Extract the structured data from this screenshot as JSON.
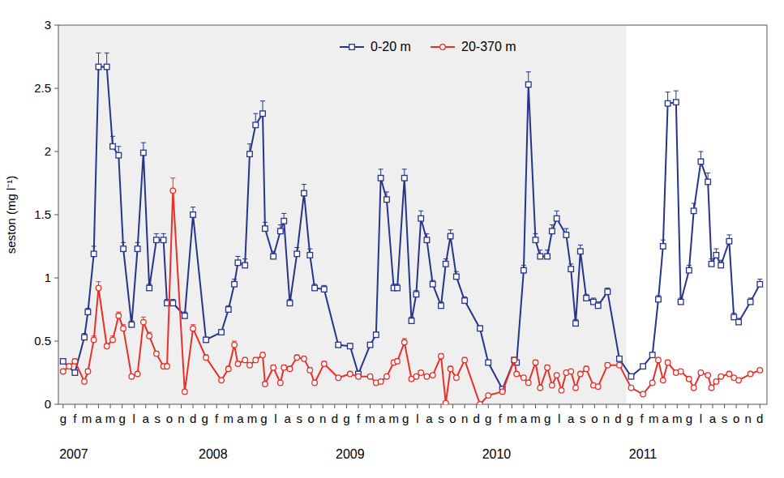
{
  "chart_data": {
    "type": "line",
    "y_label": "seston (mg l⁻¹)",
    "legend": "upper center",
    "marker": "square",
    "line_style": "solid",
    "xlim": [
      -0.4,
      59.6
    ],
    "ylim": [
      0,
      3
    ],
    "yticks": [
      0,
      0.5,
      1,
      1.5,
      2,
      2.5,
      3
    ],
    "shaded_range": [
      -0.4,
      47.7
    ],
    "xticks": [
      {
        "value": 0,
        "label": "g"
      },
      {
        "value": 1,
        "label": "f"
      },
      {
        "value": 2,
        "label": "m"
      },
      {
        "value": 3,
        "label": "a"
      },
      {
        "value": 4,
        "label": "m"
      },
      {
        "value": 5,
        "label": "g"
      },
      {
        "value": 6,
        "label": "l"
      },
      {
        "value": 7,
        "label": "a"
      },
      {
        "value": 8,
        "label": "s"
      },
      {
        "value": 9,
        "label": "o"
      },
      {
        "value": 10,
        "label": "n"
      },
      {
        "value": 11,
        "label": "d"
      },
      {
        "value": 12,
        "label": "g"
      },
      {
        "value": 13,
        "label": "f"
      },
      {
        "value": 14,
        "label": "m"
      },
      {
        "value": 15,
        "label": "a"
      },
      {
        "value": 16,
        "label": "m"
      },
      {
        "value": 17,
        "label": "g"
      },
      {
        "value": 18,
        "label": "l"
      },
      {
        "value": 19,
        "label": "a"
      },
      {
        "value": 20,
        "label": "s"
      },
      {
        "value": 21,
        "label": "o"
      },
      {
        "value": 22,
        "label": "n"
      },
      {
        "value": 23,
        "label": "d"
      },
      {
        "value": 24,
        "label": "g"
      },
      {
        "value": 25,
        "label": "f"
      },
      {
        "value": 26,
        "label": "m"
      },
      {
        "value": 27,
        "label": "a"
      },
      {
        "value": 28,
        "label": "m"
      },
      {
        "value": 29,
        "label": "g"
      },
      {
        "value": 30,
        "label": "l"
      },
      {
        "value": 31,
        "label": "a"
      },
      {
        "value": 32,
        "label": "s"
      },
      {
        "value": 33,
        "label": "o"
      },
      {
        "value": 34,
        "label": "n"
      },
      {
        "value": 35,
        "label": "d"
      },
      {
        "value": 36,
        "label": "g"
      },
      {
        "value": 37,
        "label": "f"
      },
      {
        "value": 38,
        "label": "m"
      },
      {
        "value": 39,
        "label": "a"
      },
      {
        "value": 40,
        "label": "m"
      },
      {
        "value": 41,
        "label": "g"
      },
      {
        "value": 42,
        "label": "l"
      },
      {
        "value": 43,
        "label": "a"
      },
      {
        "value": 44,
        "label": "s"
      },
      {
        "value": 45,
        "label": "o"
      },
      {
        "value": 46,
        "label": "n"
      },
      {
        "value": 47,
        "label": "d"
      },
      {
        "value": 48,
        "label": "g"
      },
      {
        "value": 49,
        "label": "f"
      },
      {
        "value": 50,
        "label": "m"
      },
      {
        "value": 51,
        "label": "a"
      },
      {
        "value": 52,
        "label": "m"
      },
      {
        "value": 53,
        "label": "g"
      },
      {
        "value": 54,
        "label": "l"
      },
      {
        "value": 55,
        "label": "a"
      },
      {
        "value": 56,
        "label": "s"
      },
      {
        "value": 57,
        "label": "o"
      },
      {
        "value": 58,
        "label": "n"
      },
      {
        "value": 59,
        "label": "d"
      }
    ],
    "annotations": [
      {
        "text": "2007",
        "x": 0.9
      },
      {
        "text": "2008",
        "x": 12.7
      },
      {
        "text": "2009",
        "x": 24.3
      },
      {
        "text": "2010",
        "x": 36.7
      },
      {
        "text": "2011",
        "x": 49.1
      }
    ],
    "series": [
      {
        "name": "0-20 m",
        "color": "#27348b",
        "marker": "square",
        "x": [
          0,
          1,
          1.8,
          2.1,
          2.6,
          3,
          3.7,
          4.2,
          4.7,
          5.1,
          5.8,
          6.3,
          6.8,
          7.3,
          7.9,
          8.5,
          8.8,
          9.3,
          10.3,
          11,
          12.1,
          13.4,
          14,
          14.5,
          14.8,
          15.4,
          15.8,
          16.3,
          16.9,
          17.1,
          17.8,
          18.4,
          18.7,
          19.2,
          19.8,
          20.4,
          20.9,
          21.3,
          22.1,
          23.3,
          24.3,
          25,
          26,
          26.5,
          26.9,
          27.4,
          28,
          28.3,
          28.9,
          29.5,
          29.9,
          30.3,
          30.8,
          31.3,
          32,
          32.4,
          32.8,
          33.3,
          34,
          35.3,
          36,
          37.2,
          38.2,
          38.4,
          39,
          39.4,
          40,
          40.4,
          41,
          41.4,
          41.8,
          42.6,
          43,
          43.4,
          43.8,
          44.3,
          44.9,
          45.3,
          46.1,
          47.1,
          48.1,
          49.1,
          49.9,
          50.4,
          50.8,
          51.2,
          51.9,
          52.3,
          53,
          53.4,
          54,
          54.6,
          54.9,
          55.3,
          55.7,
          56.4,
          56.8,
          57.2,
          58.2,
          59
        ],
        "values": [
          0.34,
          0.25,
          0.53,
          0.73,
          1.19,
          2.67,
          2.67,
          2.04,
          1.97,
          1.23,
          0.63,
          1.23,
          1.99,
          0.92,
          1.3,
          1.3,
          0.8,
          0.8,
          0.7,
          1.5,
          0.51,
          0.57,
          0.75,
          0.95,
          1.12,
          1.1,
          1.98,
          2.21,
          2.3,
          1.39,
          1.17,
          1.37,
          1.45,
          0.8,
          1.19,
          1.67,
          1.18,
          0.92,
          0.91,
          0.47,
          0.46,
          0.24,
          0.47,
          0.55,
          1.79,
          1.62,
          0.92,
          0.92,
          1.79,
          0.66,
          0.87,
          1.47,
          1.3,
          0.95,
          0.78,
          1.11,
          1.33,
          1.01,
          0.82,
          0.6,
          0.33,
          0.12,
          0.35,
          0.33,
          1.06,
          2.53,
          1.3,
          1.17,
          1.17,
          1.37,
          1.47,
          1.34,
          1.07,
          0.64,
          1.21,
          0.84,
          0.81,
          0.78,
          0.89,
          0.36,
          0.22,
          0.3,
          0.39,
          0.83,
          1.25,
          2.38,
          2.39,
          0.81,
          1.06,
          1.53,
          1.92,
          1.76,
          1.11,
          1.18,
          1.1,
          1.29,
          0.69,
          0.65,
          0.81,
          0.95
        ],
        "errors": [
          0.02,
          0.02,
          0.03,
          0.03,
          0.06,
          0.11,
          0.11,
          0.08,
          0.07,
          0.05,
          0.03,
          0.05,
          0.08,
          0.03,
          0.05,
          0.05,
          0.03,
          0.03,
          0.03,
          0.06,
          0.02,
          0.02,
          0.03,
          0.04,
          0.05,
          0.05,
          0.08,
          0.09,
          0.1,
          0.05,
          0.04,
          0.05,
          0.06,
          0.03,
          0.05,
          0.07,
          0.05,
          0.03,
          0.03,
          0.02,
          0.02,
          0.01,
          0.02,
          0.02,
          0.07,
          0.06,
          0.03,
          0.03,
          0.07,
          0.03,
          0.03,
          0.06,
          0.05,
          0.03,
          0.03,
          0.04,
          0.05,
          0.04,
          0.03,
          0.02,
          0.01,
          0.01,
          0.02,
          0.02,
          0.04,
          0.1,
          0.05,
          0.05,
          0.05,
          0.05,
          0.06,
          0.05,
          0.04,
          0.03,
          0.05,
          0.03,
          0.03,
          0.03,
          0.03,
          0.02,
          0.01,
          0.01,
          0.02,
          0.03,
          0.05,
          0.09,
          0.09,
          0.03,
          0.04,
          0.06,
          0.08,
          0.07,
          0.04,
          0.05,
          0.04,
          0.05,
          0.03,
          0.03,
          0.03,
          0.04
        ]
      },
      {
        "name": "20-370 m",
        "color": "#e8302a",
        "marker": "circle",
        "x": [
          0,
          0.5,
          1,
          1.8,
          2.1,
          2.6,
          3,
          3.7,
          4.2,
          4.7,
          5.1,
          5.8,
          6.3,
          6.8,
          7.3,
          7.9,
          8.5,
          8.8,
          9.3,
          10.3,
          11,
          12.1,
          13.4,
          14,
          14.5,
          14.8,
          15.4,
          15.8,
          16.3,
          16.9,
          17.1,
          17.8,
          18.4,
          18.7,
          19.2,
          19.8,
          20.4,
          20.9,
          21.3,
          22.1,
          23.3,
          24.3,
          25,
          26,
          26.5,
          26.9,
          27.4,
          28,
          28.3,
          28.9,
          29.5,
          29.9,
          30.3,
          30.8,
          31.3,
          32,
          32.4,
          32.8,
          33.3,
          34,
          35.3,
          36,
          37.2,
          38.2,
          38.4,
          39,
          39.4,
          40,
          40.4,
          41,
          41.4,
          41.8,
          42.2,
          42.6,
          43,
          43.4,
          43.8,
          44.3,
          44.9,
          45.3,
          46.1,
          47.1,
          48.1,
          49.1,
          49.9,
          50.4,
          50.8,
          51.2,
          51.9,
          52.3,
          53,
          53.4,
          54,
          54.6,
          54.9,
          55.3,
          55.7,
          56.4,
          56.8,
          57.2,
          58.2,
          59
        ],
        "values": [
          0.26,
          0.3,
          0.34,
          0.18,
          0.26,
          0.51,
          0.92,
          0.46,
          0.51,
          0.7,
          0.6,
          0.22,
          0.24,
          0.65,
          0.54,
          0.4,
          0.3,
          0.3,
          1.69,
          0.1,
          0.6,
          0.37,
          0.19,
          0.28,
          0.47,
          0.32,
          0.35,
          0.31,
          0.35,
          0.39,
          0.16,
          0.29,
          0.17,
          0.29,
          0.28,
          0.37,
          0.36,
          0.27,
          0.17,
          0.32,
          0.21,
          0.24,
          0.22,
          0.22,
          0.17,
          0.18,
          0.22,
          0.33,
          0.34,
          0.49,
          0.2,
          0.22,
          0.25,
          0.22,
          0.23,
          0.38,
          0.01,
          0.28,
          0.21,
          0.35,
          0,
          0.07,
          0.1,
          0.35,
          0.24,
          0.21,
          0.17,
          0.33,
          0.13,
          0.29,
          0.15,
          0.23,
          0.11,
          0.25,
          0.26,
          0.13,
          0.24,
          0.28,
          0.15,
          0.14,
          0.31,
          0.31,
          0.13,
          0.08,
          0.17,
          0.35,
          0.19,
          0.33,
          0.25,
          0.26,
          0.2,
          0.13,
          0.25,
          0.23,
          0.13,
          0.18,
          0.22,
          0.24,
          0.21,
          0.19,
          0.24,
          0.27
        ],
        "errors": [
          0.02,
          0.02,
          0.02,
          0.01,
          0.02,
          0.03,
          0.05,
          0.02,
          0.03,
          0.03,
          0.03,
          0.01,
          0.01,
          0.04,
          0.03,
          0.02,
          0.02,
          0.02,
          0.1,
          0.01,
          0.03,
          0.02,
          0.01,
          0.02,
          0.03,
          0.02,
          0.02,
          0.02,
          0.02,
          0.02,
          0.01,
          0.02,
          0.01,
          0.02,
          0.02,
          0.02,
          0.02,
          0.02,
          0.01,
          0.02,
          0.01,
          0.01,
          0.01,
          0.01,
          0.01,
          0.01,
          0.01,
          0.02,
          0.02,
          0.03,
          0.01,
          0.01,
          0.01,
          0.01,
          0.01,
          0.02,
          0.01,
          0.02,
          0.01,
          0.02,
          0.01,
          0.01,
          0.01,
          0.02,
          0.01,
          0.01,
          0.01,
          0.02,
          0.01,
          0.02,
          0.01,
          0.01,
          0.01,
          0.01,
          0.01,
          0.01,
          0.01,
          0.02,
          0.01,
          0.01,
          0.02,
          0.02,
          0.01,
          0.01,
          0.01,
          0.02,
          0.01,
          0.02,
          0.01,
          0.01,
          0.01,
          0.01,
          0.01,
          0.01,
          0.01,
          0.01,
          0.01,
          0.01,
          0.01,
          0.01,
          0.01,
          0.01
        ]
      }
    ]
  }
}
